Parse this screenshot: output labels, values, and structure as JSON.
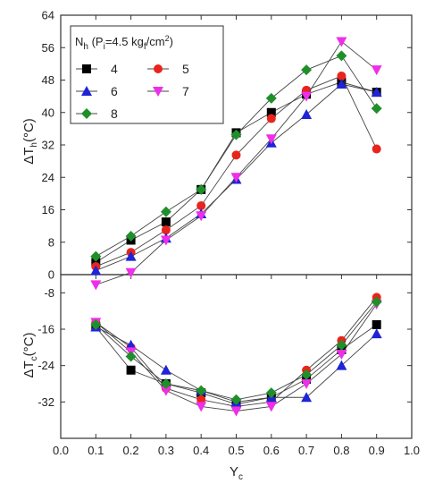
{
  "chart_data": {
    "type": "line",
    "x": [
      0.1,
      0.2,
      0.3,
      0.4,
      0.5,
      0.6,
      0.7,
      0.8,
      0.9
    ],
    "xlabel_main": "Y",
    "xlabel_sub": "c",
    "xlim": [
      0.0,
      1.0
    ],
    "xticks": [
      "0.0",
      "0.1",
      "0.2",
      "0.3",
      "0.4",
      "0.5",
      "0.6",
      "0.7",
      "0.8",
      "0.9",
      "1.0"
    ],
    "top_panel": {
      "ylabel_main": "ΔT",
      "ylabel_sub": "h",
      "ylabel_unit": "(°C)",
      "ylim": [
        0,
        64
      ],
      "yticks": [
        "0",
        "8",
        "16",
        "24",
        "32",
        "40",
        "48",
        "56",
        "64"
      ]
    },
    "bottom_panel": {
      "ylabel_main": "ΔT",
      "ylabel_sub": "c",
      "ylabel_unit": "(°C)",
      "ylim": [
        -40,
        -4
      ],
      "yticks": [
        "-8",
        "-16",
        "-24",
        "-32"
      ]
    },
    "legend": {
      "title_main": "N",
      "title_sub": "h",
      "title_paren": " (P",
      "title_paren_sub": "i",
      "title_value": "=4.5 kg",
      "title_unit_sub": "f",
      "title_unit": "/cm",
      "title_unit_sup": "2",
      "title_close": ")",
      "placement": "top-left"
    },
    "series": [
      {
        "name": "4",
        "color": "#000000",
        "marker": "square",
        "hot": [
          3,
          8.5,
          13,
          21,
          35,
          40,
          44.5,
          47.5,
          45
        ],
        "cold": [
          -15.5,
          -25,
          -28,
          -30,
          -32.5,
          -31,
          -27,
          -20.5,
          -15
        ]
      },
      {
        "name": "5",
        "color": "#e8241c",
        "marker": "circle",
        "hot": [
          2,
          5.5,
          11,
          17,
          29.5,
          38.5,
          45.5,
          49,
          31
        ],
        "cold": [
          -14.5,
          -20,
          -29,
          -31.5,
          -33,
          -32,
          -25,
          -18.5,
          -9
        ]
      },
      {
        "name": "6",
        "color": "#1f24d6",
        "marker": "triangle-up",
        "hot": [
          1,
          4.5,
          9,
          15,
          23.5,
          32.5,
          39.5,
          47,
          45
        ],
        "cold": [
          -15.5,
          -19.5,
          -25,
          -29.5,
          -32,
          -31,
          -31,
          -24,
          -17
        ]
      },
      {
        "name": "7",
        "color": "#ee2ee8",
        "marker": "triangle-down",
        "hot": [
          -2.5,
          0.5,
          8.5,
          14.5,
          24,
          33.5,
          44,
          57.5,
          50.5
        ],
        "cold": [
          -14.5,
          -21,
          -29.5,
          -33,
          -34,
          -33,
          -28,
          -21.5,
          -10.5
        ]
      },
      {
        "name": "8",
        "color": "#1f8f2a",
        "marker": "diamond",
        "hot": [
          4.5,
          9.5,
          15.5,
          21,
          34.5,
          43.5,
          50.5,
          54,
          41
        ],
        "cold": [
          -15,
          -22,
          -28,
          -29.5,
          -31.5,
          -30,
          -26,
          -19.5,
          -10
        ]
      }
    ]
  }
}
